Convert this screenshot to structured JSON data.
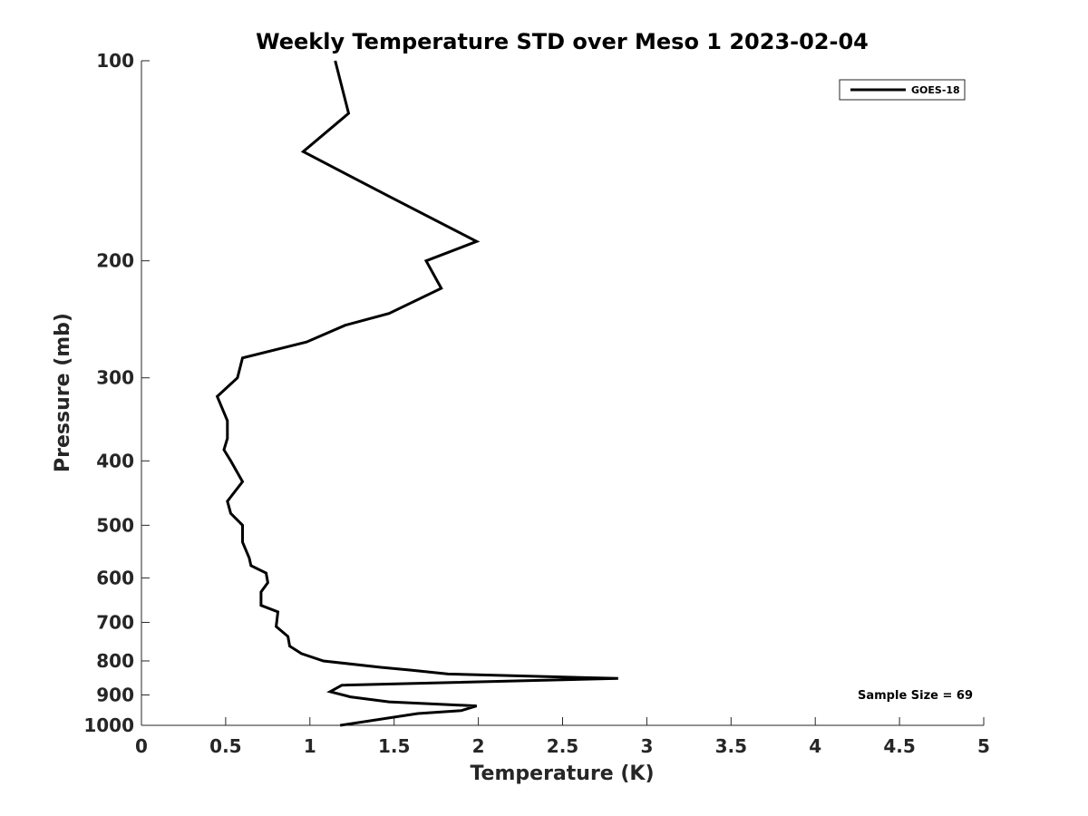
{
  "chart_data": {
    "type": "line",
    "title": "Weekly Temperature STD over Meso 1 2023-02-04",
    "xlabel": "Temperature (K)",
    "ylabel": "Pressure (mb)",
    "xlim": [
      0,
      5
    ],
    "ylim": [
      100,
      1000
    ],
    "yscale": "log",
    "y_reversed": true,
    "grid": false,
    "legend_position": "top-right",
    "x_ticks": [
      0,
      0.5,
      1,
      1.5,
      2,
      2.5,
      3,
      3.5,
      4,
      4.5,
      5
    ],
    "x_tick_labels": [
      "0",
      "0.5",
      "1",
      "1.5",
      "2",
      "2.5",
      "3",
      "3.5",
      "4",
      "4.5",
      "5"
    ],
    "y_ticks": [
      100,
      200,
      300,
      400,
      500,
      600,
      700,
      800,
      900,
      1000
    ],
    "y_tick_labels": [
      "100",
      "200",
      "300",
      "400",
      "500",
      "600",
      "700",
      "800",
      "900",
      "1000"
    ],
    "series": [
      {
        "name": "GOES-18",
        "color": "#000000",
        "x": [
          1.15,
          1.23,
          0.96,
          1.47,
          1.99,
          1.69,
          1.78,
          1.47,
          1.21,
          0.98,
          0.6,
          0.57,
          0.45,
          0.51,
          0.51,
          0.49,
          0.53,
          0.6,
          0.51,
          0.53,
          0.6,
          0.6,
          0.64,
          0.65,
          0.74,
          0.75,
          0.71,
          0.71,
          0.81,
          0.8,
          0.87,
          0.88,
          0.95,
          1.08,
          1.42,
          1.6,
          1.82,
          2.83,
          1.19,
          1.12,
          1.24,
          1.47,
          1.99,
          1.9,
          1.64,
          1.18
        ],
        "y": [
          100,
          120,
          137,
          160,
          187,
          200,
          220,
          240,
          250,
          265,
          280,
          300,
          320,
          348,
          370,
          385,
          400,
          430,
          460,
          480,
          500,
          530,
          560,
          575,
          590,
          610,
          630,
          660,
          675,
          710,
          735,
          760,
          780,
          800,
          818,
          826,
          837,
          850,
          870,
          890,
          906,
          922,
          935,
          950,
          960,
          1000
        ]
      }
    ],
    "annotations": [
      "Sample Size = 69"
    ]
  }
}
